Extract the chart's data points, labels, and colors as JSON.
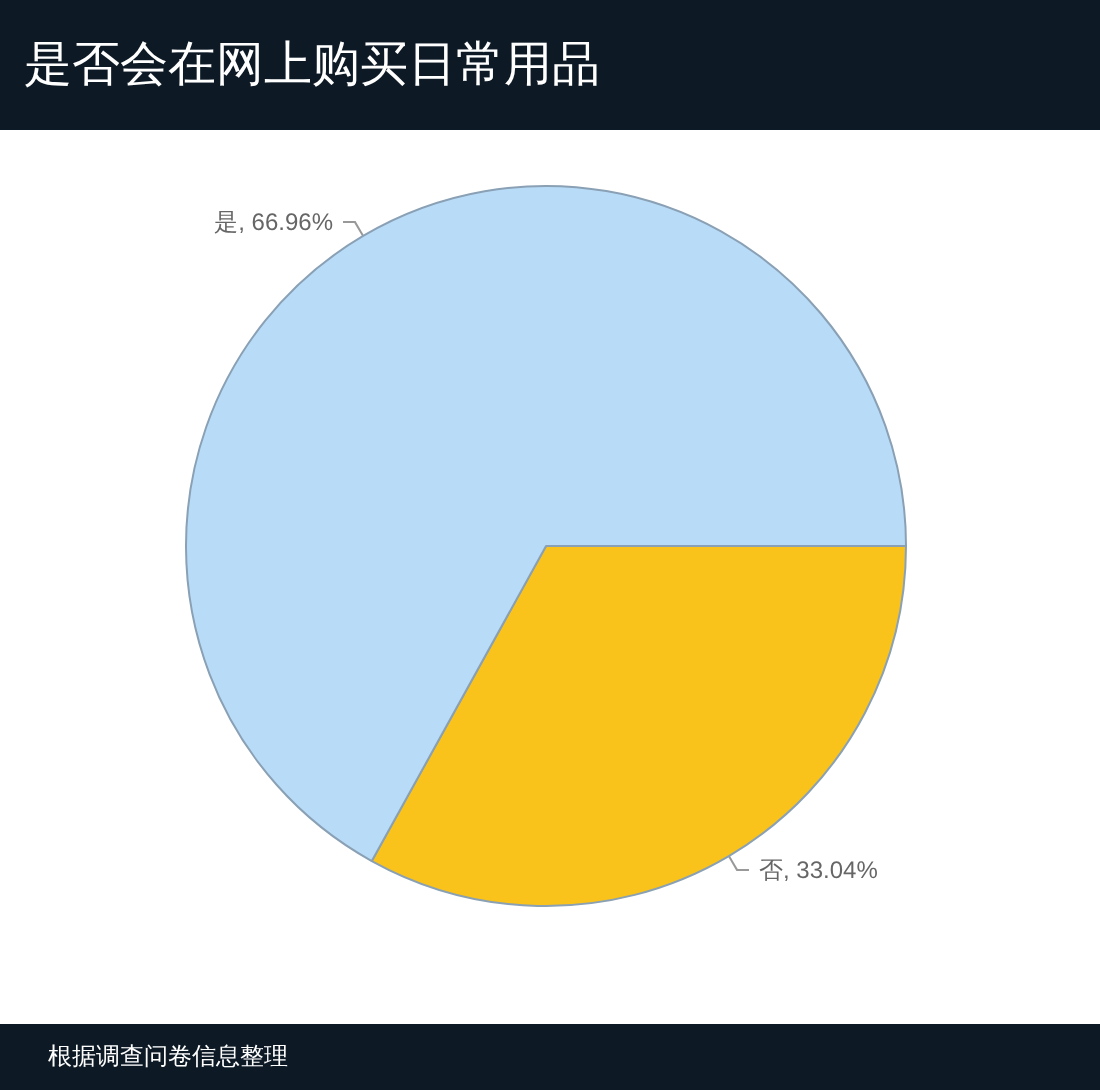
{
  "chart_data": {
    "type": "pie",
    "title": "是否会在网上购买日常用品",
    "categories": [
      "否",
      "是"
    ],
    "values": [
      33.04,
      66.96
    ],
    "colors": [
      "#f9c31c",
      "#b8dcf8"
    ],
    "value_labels": [
      "33.04%",
      "66.96%"
    ],
    "annotations": [
      "根据调查问卷信息整理"
    ],
    "legend": false
  }
}
